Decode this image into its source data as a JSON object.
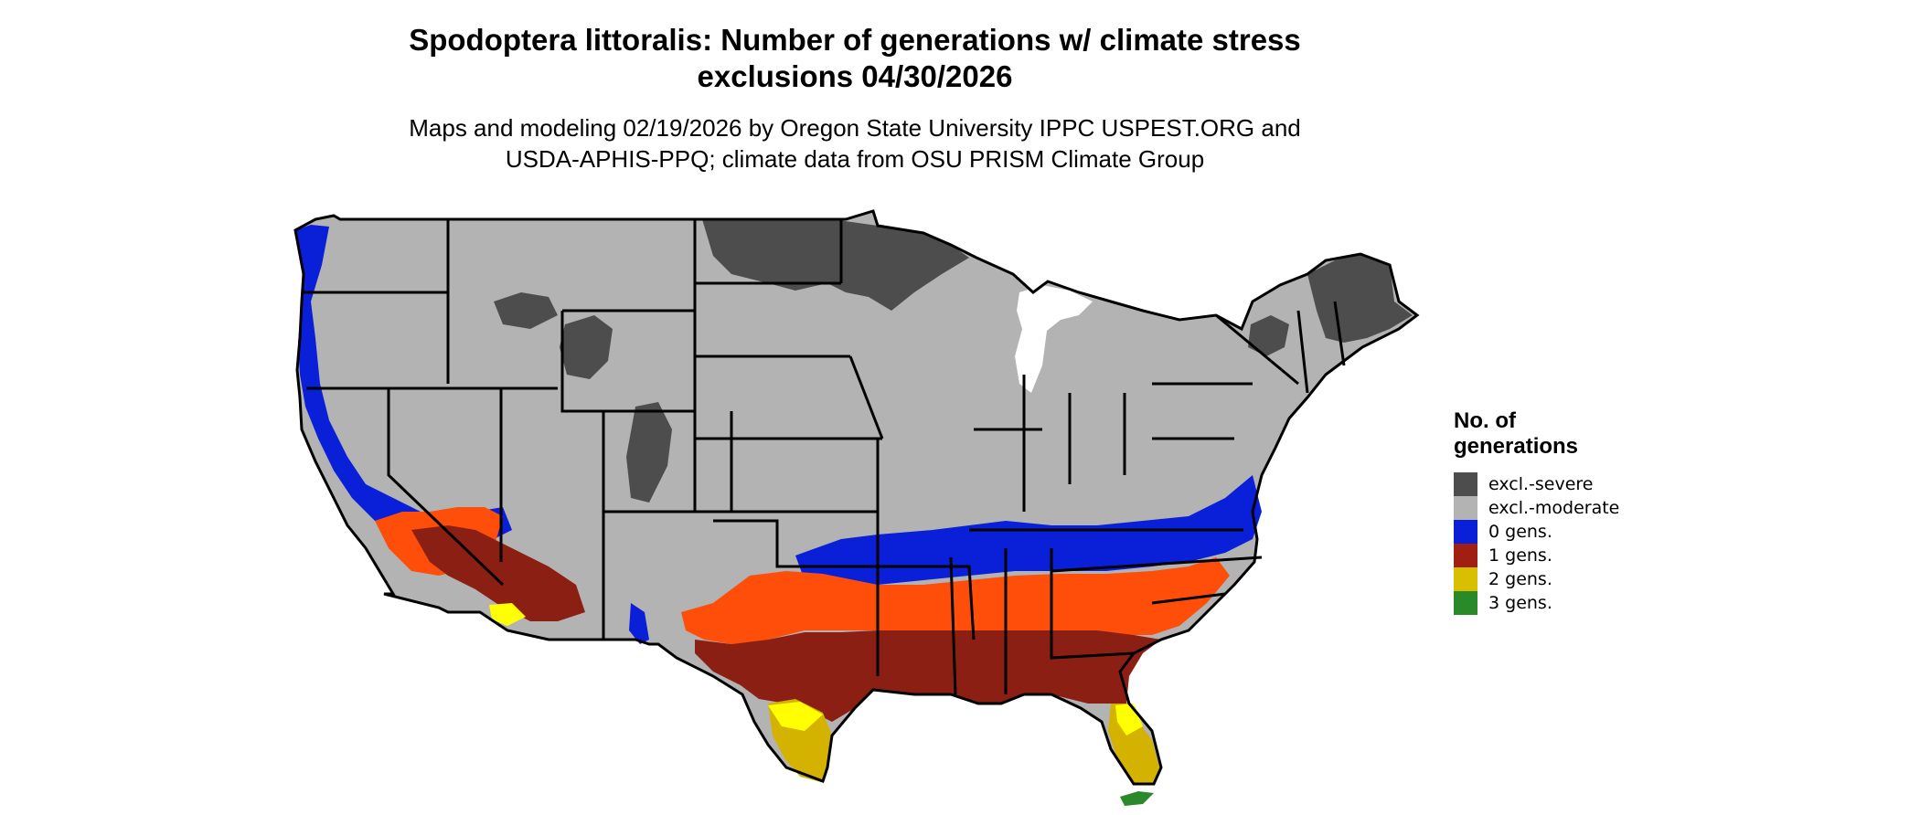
{
  "title_line1": "Spodoptera littoralis: Number of generations w/ climate stress",
  "title_line2": "exclusions 04/30/2026",
  "subtitle_line1": "Maps and modeling 02/19/2026 by Oregon State University IPPC USPEST.ORG and",
  "subtitle_line2": "USDA-APHIS-PPQ; climate data from OSU PRISM Climate Group",
  "legend": {
    "title": "No. of generations",
    "items": [
      {
        "label": "excl.-severe",
        "color": "#4d4d4d"
      },
      {
        "label": "excl.-moderate",
        "color": "#b3b3b3"
      },
      {
        "label": "0 gens.",
        "color": "#0a1fd8"
      },
      {
        "label": "1 gens.",
        "color": "#a01e12"
      },
      {
        "label": "2 gens.",
        "color": "#d8c000"
      },
      {
        "label": "3 gens.",
        "color": "#2a8a2a"
      }
    ]
  },
  "map_colors": {
    "severe": "#4d4d4d",
    "moderate": "#b3b3b3",
    "zero_gens": "#0a1fd8",
    "one_gens_dark": "#8c1f14",
    "one_gens_orange": "#ff4d0a",
    "two_gens": "#d4b300",
    "two_gens_bright": "#ffff00",
    "three_gens": "#2a8a2a",
    "border": "#000000"
  }
}
